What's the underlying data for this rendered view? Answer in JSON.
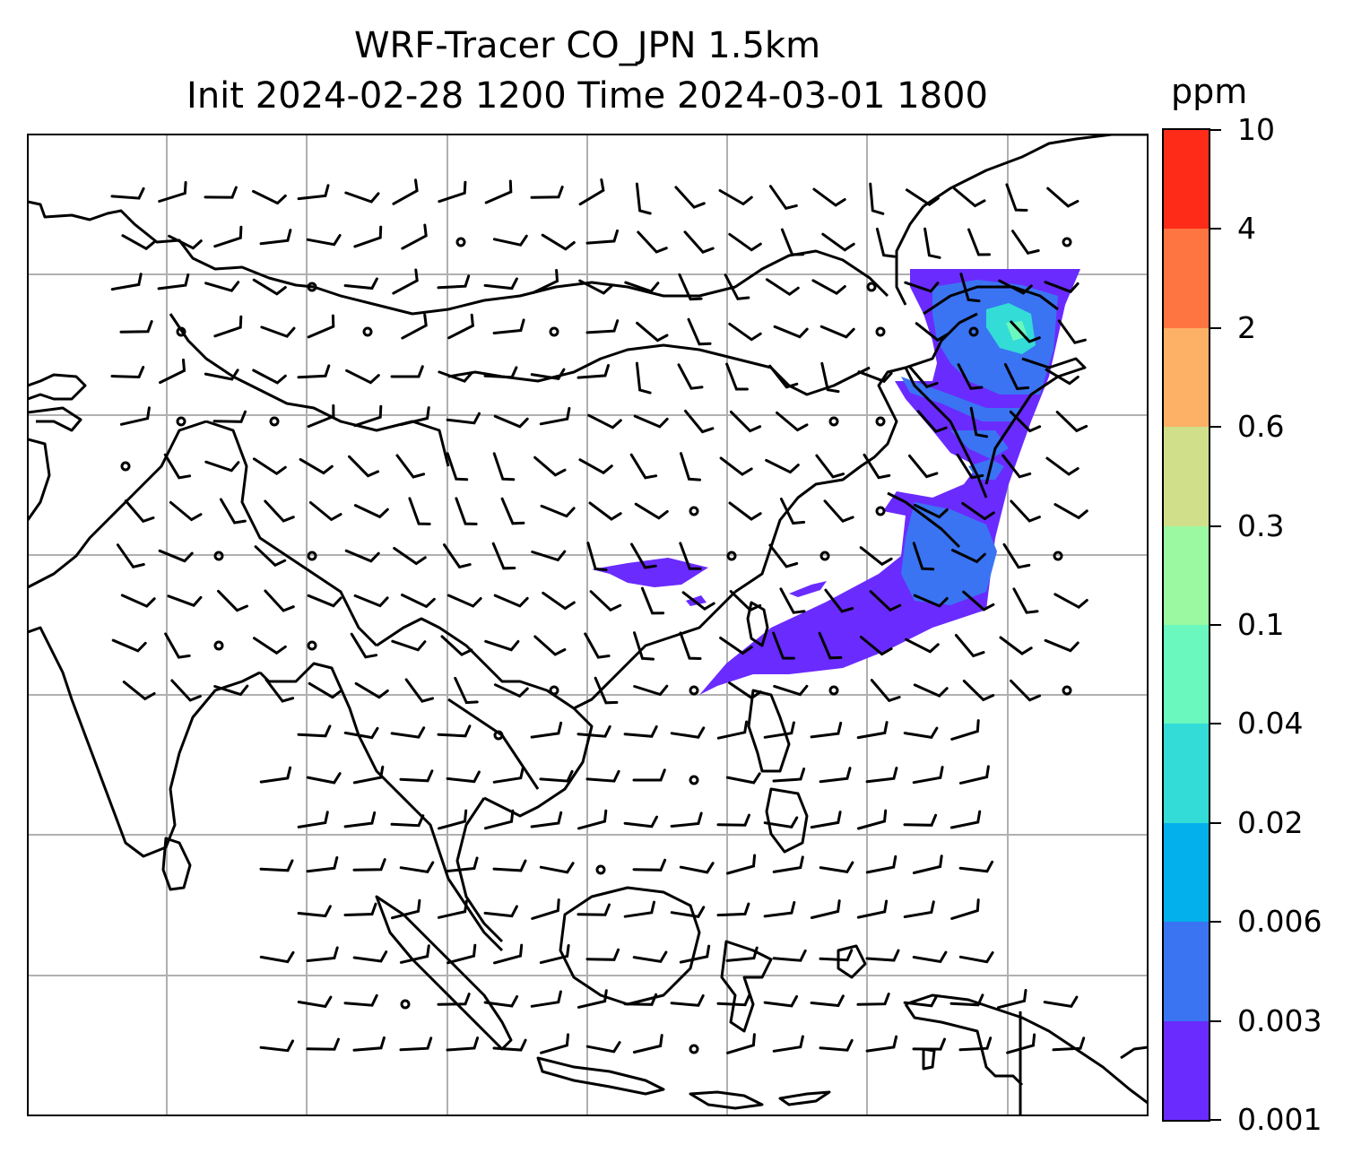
{
  "title": {
    "line1": "WRF-Tracer CO_JPN 1.5km",
    "line2": "Init 2024-02-28 1200 Time 2024-03-01 1800"
  },
  "colorbar": {
    "unit": "ppm",
    "levels": [
      "0.001",
      "0.003",
      "0.006",
      "0.02",
      "0.04",
      "0.1",
      "0.3",
      "0.6",
      "2",
      "4",
      "10"
    ],
    "colors": [
      "#6a2bff",
      "#3a74f2",
      "#04b0eb",
      "#33dcd6",
      "#6af8bf",
      "#9bf9a1",
      "#d0e08a",
      "#fdb166",
      "#ff7541",
      "#ff2b19"
    ]
  },
  "map": {
    "gridlines": true,
    "grid_color": "#b0b0b0",
    "coastline_color": "#000000",
    "wind_barbs": true,
    "plume_colors": [
      "#6a2bff",
      "#3a74f2",
      "#33dcd6"
    ]
  }
}
